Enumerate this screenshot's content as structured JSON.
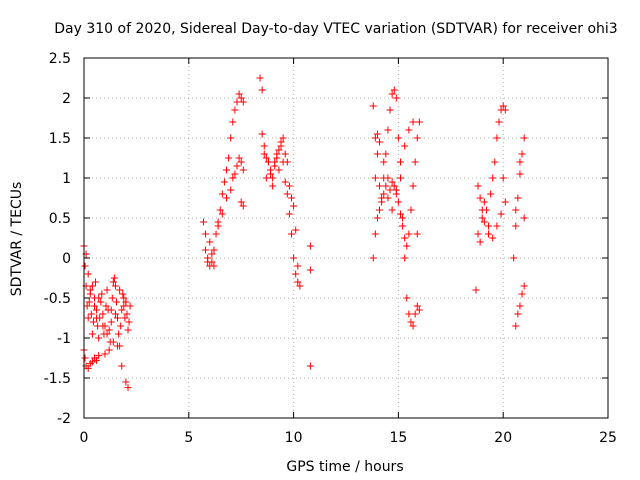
{
  "chart_data": {
    "type": "scatter",
    "title": "Day 310 of 2020, Sidereal Day-to-day VTEC variation (SDTVAR) for receiver ohi3",
    "xlabel": "GPS time / hours",
    "ylabel": "SDTVAR / TECUs",
    "xlim": [
      0,
      25
    ],
    "ylim": [
      -2,
      2.5
    ],
    "xticks": [
      0,
      5,
      10,
      15,
      20,
      25
    ],
    "xtick_labels": [
      "0",
      "5",
      "10",
      "15",
      "20",
      "25"
    ],
    "yticks": [
      -2,
      -1.5,
      -1,
      -0.5,
      0,
      0.5,
      1,
      1.5,
      2,
      2.5
    ],
    "ytick_labels": [
      "-2",
      "-1.5",
      "-1",
      "-0.5",
      "0",
      "0.5",
      "1",
      "1.5",
      "2",
      "2.5"
    ],
    "grid": true,
    "marker": "+",
    "color": "#ff0000",
    "series": [
      {
        "name": "SDTVAR",
        "x": [
          0.0,
          0.05,
          0.1,
          0.15,
          0.2,
          0.25,
          0.3,
          0.35,
          0.4,
          0.45,
          0.5,
          0.55,
          0.6,
          0.65,
          0.7,
          0.75,
          0.8,
          0.85,
          0.9,
          0.95,
          1.0,
          1.05,
          1.1,
          1.15,
          1.2,
          1.25,
          1.3,
          1.35,
          1.4,
          1.45,
          1.5,
          1.55,
          1.6,
          1.65,
          1.7,
          1.75,
          1.8,
          1.85,
          1.9,
          1.95,
          2.0,
          2.05,
          2.1,
          2.15,
          2.2,
          0.0,
          0.05,
          0.1,
          0.2,
          0.3,
          0.4,
          0.5,
          0.6,
          0.7,
          1.0,
          1.2,
          1.4,
          1.6,
          1.8,
          2.0,
          2.1,
          0.1,
          0.2,
          0.3,
          0.4,
          0.5,
          0.6,
          0.7,
          0.9,
          1.1,
          1.3,
          1.5,
          1.7,
          1.9,
          2.0,
          5.7,
          5.8,
          5.9,
          6.0,
          6.1,
          6.2,
          6.3,
          6.4,
          6.5,
          6.6,
          6.7,
          6.8,
          6.9,
          7.0,
          7.1,
          7.2,
          7.3,
          7.4,
          7.5,
          7.6,
          5.8,
          5.9,
          6.0,
          6.1,
          6.2,
          6.4,
          6.6,
          6.8,
          7.0,
          7.1,
          7.2,
          7.3,
          7.4,
          7.5,
          7.6,
          7.5,
          7.6,
          8.4,
          8.5,
          8.6,
          8.7,
          8.8,
          8.9,
          9.0,
          9.1,
          9.2,
          9.3,
          9.4,
          9.5,
          9.6,
          9.7,
          9.8,
          9.9,
          10.0,
          10.1,
          10.2,
          10.3,
          8.5,
          8.6,
          8.7,
          8.8,
          8.9,
          9.0,
          9.1,
          9.2,
          9.3,
          9.4,
          9.5,
          9.6,
          9.7,
          9.8,
          9.9,
          10.0,
          10.1,
          10.2,
          10.8,
          10.8,
          10.8,
          13.8,
          13.9,
          14.0,
          14.1,
          14.2,
          14.3,
          14.4,
          14.5,
          14.6,
          14.7,
          14.8,
          14.9,
          15.0,
          15.1,
          15.2,
          15.3,
          15.4,
          15.5,
          15.6,
          15.7,
          15.8,
          15.9,
          16.0,
          13.8,
          13.9,
          14.0,
          14.1,
          14.2,
          14.3,
          14.4,
          14.5,
          14.6,
          14.7,
          14.8,
          14.9,
          15.0,
          15.1,
          15.2,
          15.3,
          15.4,
          15.5,
          15.6,
          15.7,
          15.8,
          15.9,
          16.0,
          13.9,
          14.0,
          14.1,
          14.3,
          14.5,
          14.7,
          14.9,
          15.1,
          15.3,
          15.5,
          15.7,
          15.9,
          18.7,
          18.8,
          18.9,
          19.0,
          19.1,
          19.2,
          19.3,
          19.4,
          19.5,
          19.6,
          19.7,
          19.8,
          19.9,
          20.0,
          20.1,
          18.8,
          18.9,
          19.0,
          19.1,
          19.3,
          19.5,
          19.7,
          19.9,
          20.0,
          20.1,
          20.5,
          20.6,
          20.7,
          20.8,
          20.9,
          21.0,
          20.6,
          20.7,
          20.8,
          20.9,
          21.0,
          20.6,
          20.8,
          21.0
        ],
        "y": [
          0.15,
          -0.1,
          -0.35,
          -0.6,
          -0.75,
          -0.55,
          -0.4,
          -0.7,
          -0.95,
          -0.8,
          -0.5,
          -0.3,
          -0.65,
          -0.85,
          -1.0,
          -0.75,
          -0.55,
          -0.45,
          -0.7,
          -0.95,
          -0.85,
          -0.6,
          -0.4,
          -0.65,
          -0.9,
          -1.05,
          -0.8,
          -0.5,
          -0.3,
          -0.25,
          -0.35,
          -0.55,
          -0.75,
          -0.95,
          -1.1,
          -0.85,
          -0.65,
          -0.45,
          -0.6,
          -0.75,
          -0.55,
          -0.7,
          -0.9,
          -0.8,
          -0.6,
          -1.15,
          -1.25,
          -1.35,
          -1.38,
          -1.32,
          -1.3,
          -1.25,
          -1.28,
          -1.22,
          -1.2,
          -1.15,
          -1.05,
          -1.1,
          -1.35,
          -1.55,
          -1.62,
          0.05,
          -0.2,
          -0.45,
          -0.35,
          -0.6,
          -0.75,
          -0.5,
          -0.85,
          -0.95,
          -0.65,
          -0.7,
          -0.4,
          -0.5,
          -0.55,
          0.45,
          0.1,
          -0.05,
          -0.1,
          -0.05,
          0.1,
          0.3,
          0.45,
          0.6,
          0.8,
          0.95,
          1.1,
          1.25,
          1.5,
          1.7,
          1.85,
          1.95,
          2.05,
          2.0,
          1.95,
          0.3,
          0.0,
          0.2,
          0.05,
          -0.1,
          0.4,
          0.55,
          0.75,
          0.85,
          1.0,
          1.05,
          1.15,
          1.25,
          1.2,
          1.1,
          0.7,
          0.65,
          2.25,
          2.1,
          1.3,
          1.0,
          1.2,
          1.1,
          0.9,
          1.2,
          1.3,
          1.1,
          1.45,
          1.5,
          1.3,
          1.2,
          0.9,
          0.75,
          0.65,
          0.35,
          -0.1,
          -0.35,
          1.55,
          1.4,
          1.25,
          1.2,
          1.05,
          1.0,
          1.15,
          1.25,
          1.35,
          1.4,
          1.2,
          0.95,
          0.8,
          0.55,
          0.3,
          0.0,
          -0.2,
          -0.3,
          0.15,
          -0.15,
          -1.35,
          1.9,
          1.5,
          1.3,
          0.9,
          0.75,
          1.0,
          1.3,
          1.6,
          1.85,
          2.05,
          2.1,
          2.0,
          1.5,
          1.0,
          0.5,
          0.0,
          -0.5,
          -0.7,
          -0.8,
          -0.85,
          -0.7,
          -0.6,
          -0.65,
          0.0,
          0.3,
          0.5,
          0.6,
          0.7,
          0.8,
          0.9,
          0.75,
          0.85,
          0.95,
          0.9,
          0.8,
          0.7,
          0.55,
          0.4,
          0.25,
          0.15,
          0.3,
          0.6,
          0.9,
          1.2,
          1.5,
          1.7,
          1.0,
          1.55,
          1.45,
          1.2,
          1.0,
          0.6,
          0.85,
          1.2,
          1.4,
          1.6,
          1.7,
          0.3,
          -0.4,
          0.3,
          0.2,
          0.5,
          0.7,
          0.6,
          0.4,
          0.8,
          1.0,
          1.2,
          1.5,
          1.7,
          1.85,
          1.9,
          1.85,
          0.9,
          0.75,
          0.6,
          0.45,
          0.3,
          0.25,
          0.4,
          0.55,
          1.0,
          0.7,
          0.0,
          0.4,
          0.75,
          1.05,
          1.3,
          1.5,
          -0.85,
          -0.7,
          -0.6,
          -0.45,
          -0.35,
          0.6,
          1.2,
          0.5
        ]
      }
    ]
  }
}
